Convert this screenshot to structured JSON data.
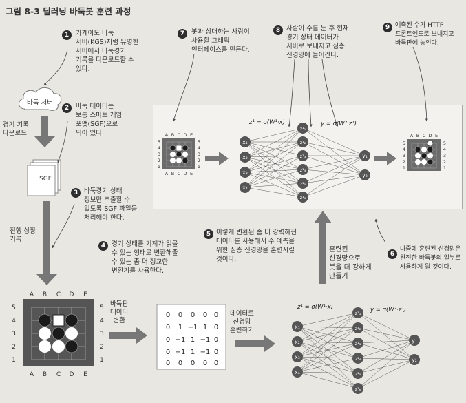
{
  "figure_title": "그림 8-3 딥러닝 바둑봇 훈련 과정",
  "steps": {
    "s1": {
      "num": "1",
      "text": [
        "카게이도 바둑",
        "서버(KGS)처럼 유명한",
        "서버에서 바둑경기",
        "기록을 다운로드할 수",
        "있다."
      ]
    },
    "s2": {
      "num": "2",
      "text": [
        "바둑 데이터는",
        "보통 스마트 게임",
        "포맷(SGF)으로",
        "되어 있다."
      ]
    },
    "s3": {
      "num": "3",
      "text": [
        "바둑경기 상태",
        "정보만 추출할 수",
        "있도록 SGF 파일을",
        "처리해야 한다."
      ]
    },
    "s4": {
      "num": "4",
      "text": [
        "경기 상태를 기계가 읽을",
        "수 있는 형태로 변환해줄",
        "수 있는 좀 더 정교한",
        "변환기를 사용한다."
      ]
    },
    "s5": {
      "num": "5",
      "text": [
        "이렇게 변환된 좀 더 강력해진",
        "데이터를 사용해서 수 예측을",
        "위한 심층 신경망을 훈련시킬",
        "것이다."
      ]
    },
    "s6": {
      "num": "6",
      "text": [
        "나중에 훈련된 신경망은",
        "완전한 바둑봇의 일부로",
        "사용하게 될 것이다."
      ]
    },
    "s7": {
      "num": "7",
      "text": [
        "봇과 상대하는 사람이",
        "사용할 그래픽",
        "인터페이스를 만든다."
      ]
    },
    "s8": {
      "num": "8",
      "text": [
        "사람이 수를 둔 후 현재",
        "경기 상태 데이터가",
        "서버로 보내지고 심층",
        "신경망에 들어간다."
      ]
    },
    "s9": {
      "num": "9",
      "text": [
        "예측된 수가 HTTP",
        "프론트엔드로 보내지고",
        "바둑판에 놓인다."
      ]
    }
  },
  "labels": {
    "server": "바둑 서버",
    "download": [
      "경기 기록",
      "다운로드"
    ],
    "sgf": "SGF",
    "progress": [
      "진행 상황",
      "기록"
    ],
    "board_convert": [
      "바둑판",
      "데이터",
      "변환"
    ],
    "nn_train": [
      "데이터로",
      "신경망",
      "훈련하기"
    ],
    "trained": [
      "훈련된",
      "신경망으로",
      "봇을 더 강하게",
      "만들기"
    ]
  },
  "formulas": {
    "z1": "z¹ = σ(W¹·x)",
    "y": "y = σ(W²·z¹)"
  },
  "board_cols": [
    "A",
    "B",
    "C",
    "D",
    "E"
  ],
  "board_rows": [
    "5",
    "4",
    "3",
    "2",
    "1"
  ],
  "matrix": [
    [
      "0",
      "0",
      "0",
      "0",
      "0"
    ],
    [
      "0",
      "1",
      "−1",
      "1",
      "0"
    ],
    [
      "0",
      "−1",
      "1",
      "−1",
      "0"
    ],
    [
      "0",
      "−1",
      "1",
      "−1",
      "0"
    ],
    [
      "0",
      "0",
      "0",
      "0",
      "0"
    ]
  ],
  "nn_inputs": [
    "x₁",
    "x₂",
    "x₃",
    "x₄"
  ],
  "nn_hidden": [
    "z¹₁",
    "z¹₂",
    "z¹₃",
    "z¹₄",
    "z¹₅",
    "z¹₆"
  ],
  "nn_outputs": [
    "y₁",
    "y₂"
  ]
}
